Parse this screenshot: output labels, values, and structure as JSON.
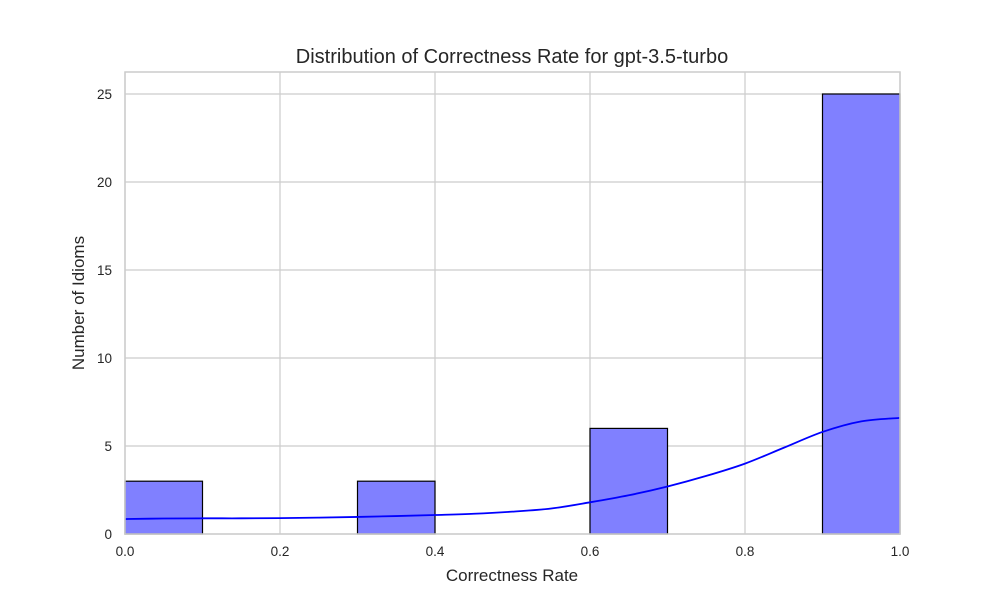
{
  "chart_data": {
    "type": "bar",
    "title": "Distribution of Correctness Rate for gpt-3.5-turbo",
    "xlabel": "Correctness Rate",
    "ylabel": "Number of Idioms",
    "xlim": [
      0.0,
      1.0
    ],
    "ylim": [
      0,
      26.25
    ],
    "x_ticks": [
      "0.0",
      "0.2",
      "0.4",
      "0.6",
      "0.8",
      "1.0"
    ],
    "y_ticks": [
      "0",
      "5",
      "10",
      "15",
      "20",
      "25"
    ],
    "grid": true,
    "bins": [
      {
        "start": 0.0,
        "end": 0.1,
        "count": 3
      },
      {
        "start": 0.3,
        "end": 0.4,
        "count": 3
      },
      {
        "start": 0.6,
        "end": 0.7,
        "count": 6
      },
      {
        "start": 0.9,
        "end": 1.0,
        "count": 25
      }
    ],
    "kde_curve": {
      "x": [
        0.0,
        0.05,
        0.1,
        0.15,
        0.2,
        0.25,
        0.3,
        0.35,
        0.4,
        0.45,
        0.5,
        0.55,
        0.6,
        0.65,
        0.7,
        0.75,
        0.8,
        0.85,
        0.9,
        0.95,
        1.0
      ],
      "y": [
        0.85,
        0.88,
        0.89,
        0.89,
        0.9,
        0.93,
        0.97,
        1.02,
        1.08,
        1.15,
        1.27,
        1.45,
        1.8,
        2.2,
        2.7,
        3.3,
        4.0,
        4.9,
        5.8,
        6.4,
        6.6
      ]
    },
    "colors": {
      "bar_fill": "#8080ff",
      "bar_edge": "#000000",
      "kde_line": "#0000ff",
      "grid": "#cccccc",
      "axes_edge": "#cccccc"
    }
  }
}
